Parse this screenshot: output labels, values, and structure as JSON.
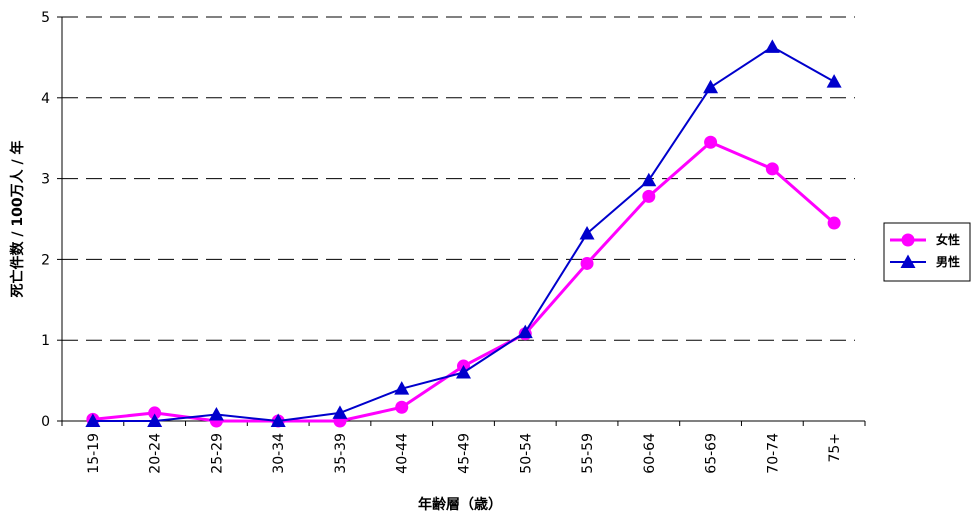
{
  "chart_data": {
    "type": "line",
    "title": "",
    "xlabel": "年齢層（歳）",
    "ylabel": "死亡件数 / 100万人 / 年",
    "categories": [
      "15-19",
      "20-24",
      "25-29",
      "30-34",
      "35-39",
      "40-44",
      "45-49",
      "50-54",
      "55-59",
      "60-64",
      "65-69",
      "70-74",
      "75+"
    ],
    "ylim": [
      0,
      5
    ],
    "yticks": [
      "0",
      "1",
      "2",
      "3",
      "4",
      "5"
    ],
    "grid": "horizontal-dashed",
    "legend_position": "right",
    "series": [
      {
        "name": "女性",
        "color": "#ff00ff",
        "marker": "circle",
        "values": [
          0.02,
          0.1,
          0.0,
          0.0,
          0.0,
          0.17,
          0.68,
          1.08,
          1.95,
          2.78,
          3.45,
          3.12,
          2.45
        ]
      },
      {
        "name": "男性",
        "color": "#0000cc",
        "marker": "triangle",
        "values": [
          0.0,
          0.0,
          0.08,
          0.0,
          0.1,
          0.4,
          0.6,
          1.1,
          2.32,
          2.98,
          4.13,
          4.63,
          4.2
        ]
      }
    ]
  }
}
